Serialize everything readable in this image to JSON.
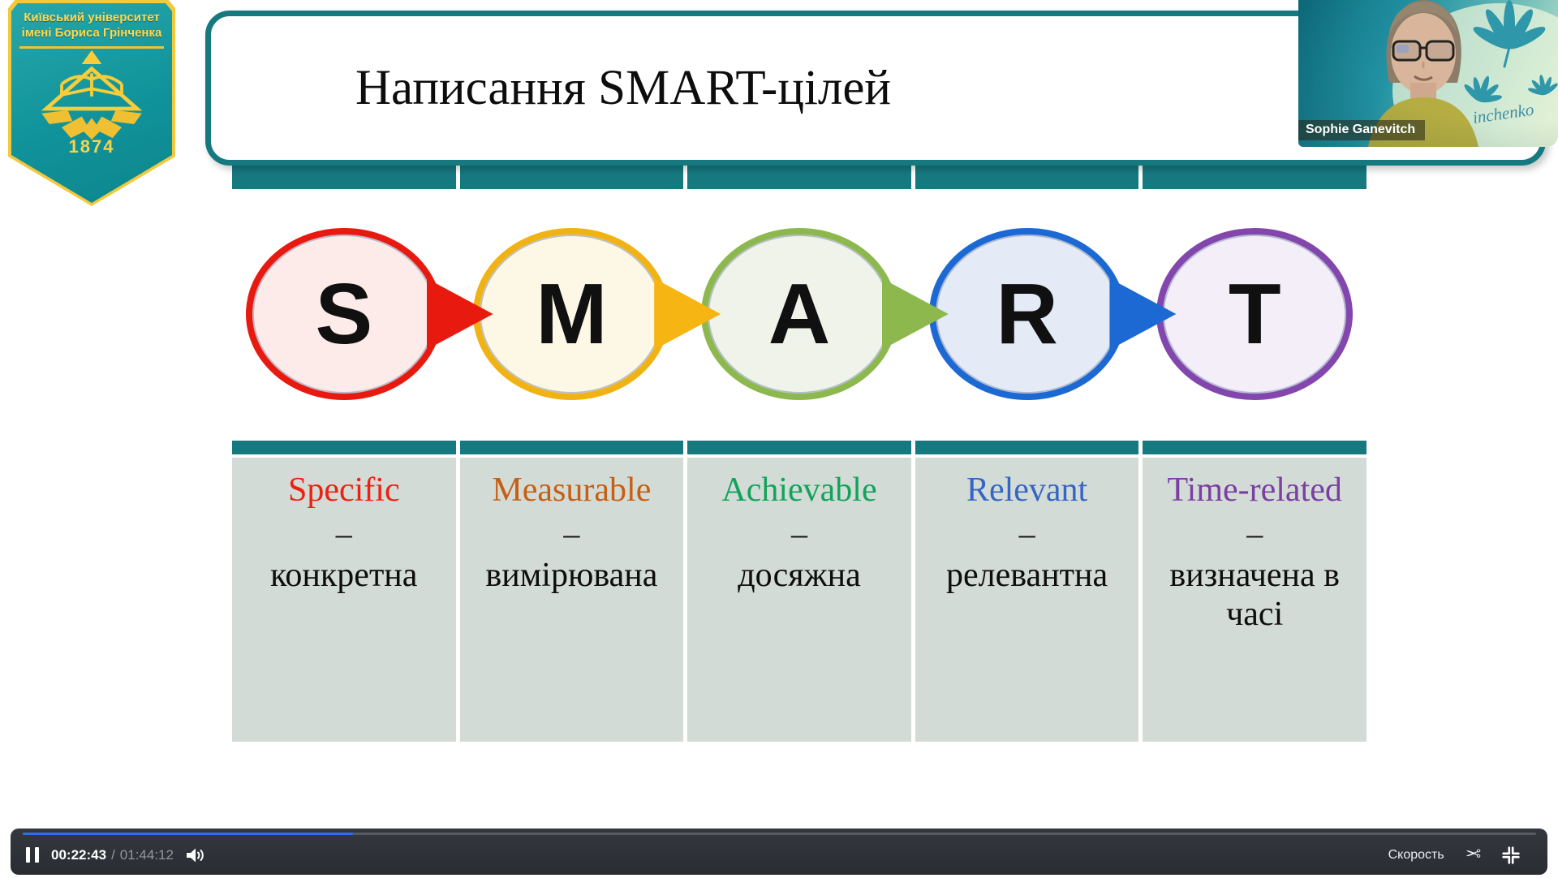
{
  "university_logo": {
    "line1": "Київський університет",
    "line2": "імені Бориса Грінченка",
    "year": "1874"
  },
  "slide": {
    "title": "Написання SMART-цілей",
    "accent_color": "#15797f",
    "cell_color": "#d3dbd6",
    "columns": [
      {
        "letter": "S",
        "term": "Specific",
        "dash": "–",
        "translation": "конкретна",
        "border": "#e81a10",
        "fill": "#fcebe9",
        "arrow": "#e81a10",
        "term_color": "#ef2012"
      },
      {
        "letter": "M",
        "term": "Measurable",
        "dash": "–",
        "translation": "вимірювана",
        "border": "#f0b313",
        "fill": "#fdf7e5",
        "arrow": "#f6b513",
        "term_color": "#c55f15"
      },
      {
        "letter": "A",
        "term": "Achievable",
        "dash": "–",
        "translation": "досяжна",
        "border": "#8db84e",
        "fill": "#eff3e9",
        "arrow": "#8db84e",
        "term_color": "#12a35b"
      },
      {
        "letter": "R",
        "term": "Relevant",
        "dash": "–",
        "translation": "релевантна",
        "border": "#1c69d4",
        "fill": "#e4ebf6",
        "arrow": "#1c69d4",
        "term_color": "#3566c4"
      },
      {
        "letter": "T",
        "term": "Time-related",
        "dash": "–",
        "translation": "визначена в часі",
        "border": "#8246ad",
        "fill": "#f4eef9",
        "arrow": null,
        "term_color": "#7b3fa2"
      }
    ]
  },
  "webcam": {
    "name": "Sophie Ganevitch",
    "watermark": "inchenko"
  },
  "player": {
    "current_time": "00:22:43",
    "time_separator": "/",
    "duration": "01:44:12",
    "speed_label": "Скорость",
    "cut_glyph": "✂",
    "progress_percent": 21.8,
    "progress_color": "#2e6ef5",
    "icons": [
      "pause-icon",
      "volume-icon",
      "scissors-icon",
      "compress-icon"
    ]
  }
}
